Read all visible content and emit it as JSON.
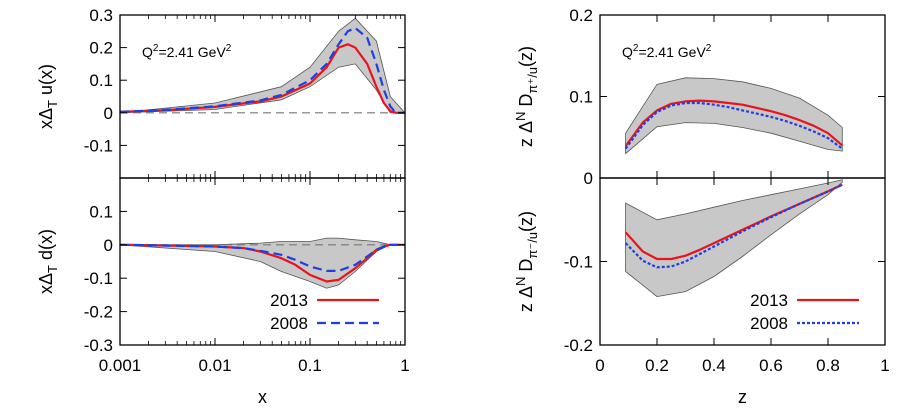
{
  "chart_data": [
    {
      "id": "top-left",
      "type": "line",
      "x_scale": "log",
      "xlim": [
        0.001,
        1
      ],
      "ylim": [
        -0.2,
        0.3
      ],
      "ylabel": "xΔ_T u(x)",
      "annotation": "Q^2=2.41 GeV^2",
      "x_ticks": [],
      "y_ticks": [
        "0.3",
        "0.2",
        "0.1",
        "0",
        "-0.1"
      ],
      "band": {
        "x": [
          0.001,
          0.01,
          0.05,
          0.1,
          0.2,
          0.3,
          0.5,
          0.7,
          1.0
        ],
        "lower": [
          0.0,
          0.01,
          0.04,
          0.08,
          0.14,
          0.15,
          0.07,
          0.0,
          0.0
        ],
        "upper": [
          0.0,
          0.03,
          0.08,
          0.14,
          0.25,
          0.29,
          0.22,
          0.05,
          0.0
        ]
      },
      "series": [
        {
          "name": "2013",
          "color": "#e8141c",
          "dash": "solid",
          "x": [
            0.001,
            0.003,
            0.01,
            0.03,
            0.05,
            0.1,
            0.15,
            0.2,
            0.25,
            0.3,
            0.4,
            0.5,
            0.6,
            0.7,
            0.8,
            1.0
          ],
          "y": [
            0.003,
            0.008,
            0.018,
            0.035,
            0.05,
            0.09,
            0.14,
            0.2,
            0.21,
            0.2,
            0.15,
            0.08,
            0.03,
            0.005,
            0.0,
            0.0
          ]
        },
        {
          "name": "2008",
          "color": "#1f3fe0",
          "dash": "dashed",
          "x": [
            0.001,
            0.003,
            0.01,
            0.03,
            0.05,
            0.1,
            0.15,
            0.2,
            0.25,
            0.3,
            0.4,
            0.5,
            0.6,
            0.7,
            0.8,
            1.0
          ],
          "y": [
            0.003,
            0.009,
            0.02,
            0.038,
            0.055,
            0.1,
            0.15,
            0.21,
            0.25,
            0.26,
            0.23,
            0.15,
            0.07,
            0.02,
            0.0,
            0.0
          ]
        }
      ],
      "zero_line": true
    },
    {
      "id": "bottom-left",
      "type": "line",
      "x_scale": "log",
      "xlim": [
        0.001,
        1
      ],
      "ylim": [
        -0.3,
        0.2
      ],
      "xlabel": "x",
      "ylabel": "xΔ_T d(x)",
      "x_ticks": [
        "0.001",
        "0.01",
        "0.1",
        "1"
      ],
      "y_ticks": [
        "0.1",
        "0",
        "-0.1",
        "-0.2",
        "-0.3"
      ],
      "band": {
        "x": [
          0.001,
          0.01,
          0.03,
          0.05,
          0.1,
          0.15,
          0.2,
          0.3,
          0.5,
          0.7,
          1.0
        ],
        "lower": [
          0.0,
          -0.02,
          -0.05,
          -0.08,
          -0.11,
          -0.13,
          -0.12,
          -0.08,
          -0.02,
          0.0,
          0.0
        ],
        "upper": [
          0.0,
          0.0,
          0.005,
          0.01,
          0.01,
          0.02,
          0.02,
          0.015,
          0.01,
          0.0,
          0.0
        ]
      },
      "series": [
        {
          "name": "2013",
          "color": "#e8141c",
          "dash": "solid",
          "x": [
            0.001,
            0.003,
            0.01,
            0.02,
            0.03,
            0.05,
            0.07,
            0.1,
            0.15,
            0.2,
            0.3,
            0.4,
            0.5,
            0.6,
            0.7,
            0.8,
            1.0
          ],
          "y": [
            0.0,
            -0.002,
            -0.005,
            -0.01,
            -0.02,
            -0.04,
            -0.06,
            -0.09,
            -0.11,
            -0.105,
            -0.07,
            -0.04,
            -0.015,
            -0.005,
            0.0,
            0.0,
            0.0
          ]
        },
        {
          "name": "2008",
          "color": "#1f3fe0",
          "dash": "dashed",
          "x": [
            0.001,
            0.003,
            0.01,
            0.02,
            0.03,
            0.05,
            0.07,
            0.1,
            0.15,
            0.2,
            0.3,
            0.4,
            0.5,
            0.6,
            0.7,
            0.8,
            1.0
          ],
          "y": [
            0.0,
            -0.002,
            -0.005,
            -0.01,
            -0.018,
            -0.03,
            -0.045,
            -0.065,
            -0.078,
            -0.078,
            -0.06,
            -0.035,
            -0.015,
            -0.005,
            0.0,
            0.0,
            0.0
          ]
        }
      ],
      "legend": {
        "position": "bottom-right",
        "entries": [
          "2013",
          "2008"
        ]
      },
      "zero_line": true
    },
    {
      "id": "top-right",
      "type": "line",
      "x_scale": "linear",
      "xlim": [
        0,
        1
      ],
      "ylim": [
        0,
        0.2
      ],
      "ylabel": "z Δ^N D_π+/u(z)",
      "annotation": "Q^2=2.41 GeV^2",
      "x_ticks": [],
      "y_ticks": [
        "0.2",
        "0.1",
        "0"
      ],
      "band": {
        "x": [
          0.09,
          0.2,
          0.3,
          0.4,
          0.5,
          0.6,
          0.7,
          0.8,
          0.85
        ],
        "lower": [
          0.03,
          0.063,
          0.068,
          0.067,
          0.062,
          0.055,
          0.045,
          0.035,
          0.033
        ],
        "upper": [
          0.055,
          0.115,
          0.123,
          0.122,
          0.118,
          0.11,
          0.098,
          0.077,
          0.062
        ]
      },
      "series": [
        {
          "name": "2013",
          "color": "#e8141c",
          "dash": "solid",
          "x": [
            0.09,
            0.15,
            0.2,
            0.25,
            0.3,
            0.35,
            0.4,
            0.45,
            0.5,
            0.55,
            0.6,
            0.65,
            0.7,
            0.75,
            0.8,
            0.85
          ],
          "y": [
            0.039,
            0.068,
            0.083,
            0.091,
            0.094,
            0.095,
            0.094,
            0.092,
            0.09,
            0.086,
            0.082,
            0.077,
            0.071,
            0.064,
            0.055,
            0.04
          ]
        },
        {
          "name": "2008",
          "color": "#1f3fe0",
          "dash": "dotted",
          "x": [
            0.09,
            0.15,
            0.2,
            0.25,
            0.3,
            0.35,
            0.4,
            0.45,
            0.5,
            0.55,
            0.6,
            0.65,
            0.7,
            0.75,
            0.8,
            0.85
          ],
          "y": [
            0.036,
            0.065,
            0.081,
            0.089,
            0.092,
            0.092,
            0.09,
            0.087,
            0.083,
            0.079,
            0.075,
            0.07,
            0.064,
            0.057,
            0.049,
            0.036
          ]
        }
      ]
    },
    {
      "id": "bottom-right",
      "type": "line",
      "x_scale": "linear",
      "xlim": [
        0,
        1
      ],
      "ylim": [
        -0.2,
        0
      ],
      "xlabel": "z",
      "ylabel": "z Δ^N D_π-/u(z)",
      "x_ticks": [
        "0",
        "0.2",
        "0.4",
        "0.6",
        "0.8",
        "1"
      ],
      "y_ticks": [
        "-0.1",
        "-0.2"
      ],
      "band": {
        "x": [
          0.09,
          0.2,
          0.3,
          0.4,
          0.5,
          0.6,
          0.7,
          0.8,
          0.85
        ],
        "lower": [
          -0.112,
          -0.142,
          -0.136,
          -0.118,
          -0.094,
          -0.068,
          -0.043,
          -0.02,
          -0.005
        ],
        "upper": [
          -0.03,
          -0.05,
          -0.043,
          -0.035,
          -0.027,
          -0.02,
          -0.013,
          -0.006,
          -0.002
        ]
      },
      "series": [
        {
          "name": "2013",
          "color": "#e8141c",
          "dash": "solid",
          "x": [
            0.09,
            0.15,
            0.2,
            0.25,
            0.3,
            0.35,
            0.4,
            0.5,
            0.6,
            0.7,
            0.8,
            0.85
          ],
          "y": [
            -0.065,
            -0.088,
            -0.097,
            -0.097,
            -0.093,
            -0.086,
            -0.078,
            -0.062,
            -0.046,
            -0.031,
            -0.016,
            -0.008
          ]
        },
        {
          "name": "2008",
          "color": "#1f3fe0",
          "dash": "dotted",
          "x": [
            0.09,
            0.15,
            0.2,
            0.25,
            0.3,
            0.35,
            0.4,
            0.5,
            0.6,
            0.7,
            0.8,
            0.85
          ],
          "y": [
            -0.078,
            -0.099,
            -0.107,
            -0.106,
            -0.1,
            -0.091,
            -0.082,
            -0.064,
            -0.047,
            -0.031,
            -0.016,
            -0.008
          ]
        }
      ],
      "legend": {
        "position": "bottom-right",
        "entries": [
          "2013",
          "2008"
        ]
      }
    }
  ],
  "band_color": "#c8c8c8"
}
